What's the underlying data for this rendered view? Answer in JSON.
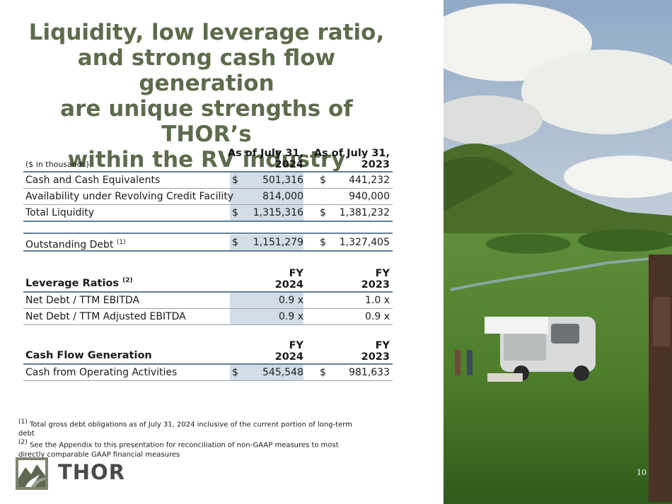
{
  "slide": {
    "title_lines": [
      "Liquidity, low leverage ratio,",
      "and strong cash flow generation",
      "are unique strengths of THOR’s",
      "within the RV industry"
    ],
    "page_number": "10",
    "accent_color": "#5e6b4c",
    "highlight_color": "#d3dde7"
  },
  "liquidity": {
    "units_label": "($ in thousands)",
    "col1_line1": "As of July 31,",
    "col1_line2": "2024",
    "col2_line1": "As of July 31,",
    "col2_line2": "2023",
    "rows": [
      {
        "label": "Cash and Cash Equivalents",
        "cur1": "$",
        "v1": "501,316",
        "cur2": "$",
        "v2": "441,232"
      },
      {
        "label": "Availability under Revolving Credit Facility",
        "cur1": "",
        "v1": "814,000",
        "cur2": "",
        "v2": "940,000"
      },
      {
        "label": "Total Liquidity",
        "cur1": "$",
        "v1": "1,315,316",
        "cur2": "$",
        "v2": "1,381,232"
      }
    ],
    "debt": {
      "label": "Outstanding Debt",
      "note": "(1)",
      "cur1": "$",
      "v1": "1,151,279",
      "cur2": "$",
      "v2": "1,327,405"
    }
  },
  "leverage": {
    "label": "Leverage Ratios",
    "note": "(2)",
    "col1_line1": "FY",
    "col1_line2": "2024",
    "col2_line1": "FY",
    "col2_line2": "2023",
    "rows": [
      {
        "label": "Net Debt / TTM EBITDA",
        "v1": "0.9 x",
        "v2": "1.0 x"
      },
      {
        "label": "Net Debt / TTM Adjusted EBITDA",
        "v1": "0.9 x",
        "v2": "0.9 x"
      }
    ]
  },
  "cashflow": {
    "label": "Cash Flow Generation",
    "col1_line1": "FY",
    "col1_line2": "2024",
    "col2_line1": "FY",
    "col2_line2": "2023",
    "row": {
      "label": "Cash from Operating Activities",
      "cur1": "$",
      "v1": "545,548",
      "cur2": "$",
      "v2": "981,633"
    }
  },
  "footnotes": [
    {
      "marker": "(1)",
      "text": "Total gross debt obligations as of July 31, 2024 inclusive of the current portion of long-term debt"
    },
    {
      "marker": "(2)",
      "text": "See the Appendix to this presentation for reconciliation of non-GAAP measures to most directly comparable GAAP financial measures"
    }
  ],
  "logo": {
    "text": "THOR",
    "icon": "thor-mountain-road-icon"
  },
  "photo": {
    "icon": "rv-landscape-photo"
  }
}
